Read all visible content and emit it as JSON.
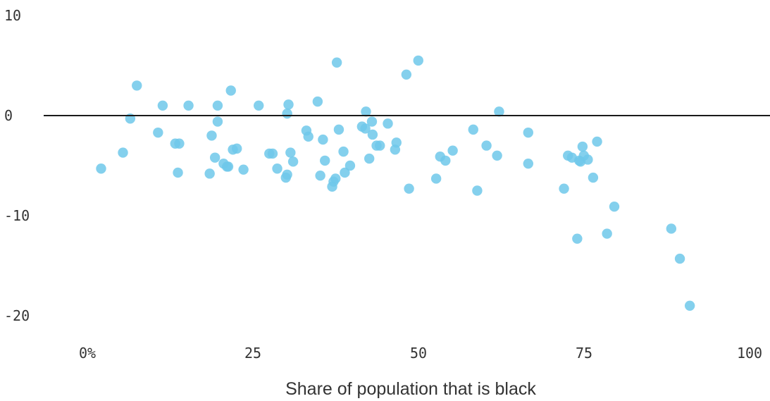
{
  "chart_data": {
    "type": "scatter",
    "title": "",
    "xlabel": "Share of population that is black",
    "ylabel": "",
    "xlim": [
      -2,
      105
    ],
    "ylim": [
      -22,
      10
    ],
    "x_ticks": [
      0,
      25,
      50,
      75,
      100
    ],
    "x_tick_labels": [
      "0%",
      "25",
      "50",
      "75",
      "100"
    ],
    "y_ticks": [
      10,
      0,
      -10,
      -20
    ],
    "y_tick_labels": [
      "10",
      "0",
      "-10",
      "-20"
    ],
    "reference_line_y": 0,
    "grid": false,
    "legend": "none",
    "point_color": "#6ec8ea",
    "series": [
      {
        "name": "",
        "points": [
          [
            2.5,
            -5.3
          ],
          [
            5.8,
            -3.7
          ],
          [
            6.9,
            -0.3
          ],
          [
            7.9,
            3.0
          ],
          [
            11.1,
            -1.7
          ],
          [
            11.8,
            1.0
          ],
          [
            13.7,
            -2.8
          ],
          [
            14.1,
            -5.7
          ],
          [
            14.3,
            -2.8
          ],
          [
            15.7,
            1.0
          ],
          [
            18.9,
            -5.8
          ],
          [
            19.2,
            -2.0
          ],
          [
            19.7,
            -4.2
          ],
          [
            20.1,
            1.0
          ],
          [
            20.1,
            -0.6
          ],
          [
            21.0,
            -4.8
          ],
          [
            21.5,
            -5.1
          ],
          [
            21.7,
            -5.1
          ],
          [
            22.1,
            2.5
          ],
          [
            22.4,
            -3.4
          ],
          [
            23.0,
            -3.3
          ],
          [
            24.0,
            -5.4
          ],
          [
            26.3,
            1.0
          ],
          [
            27.9,
            -3.8
          ],
          [
            28.4,
            -3.8
          ],
          [
            29.1,
            -5.3
          ],
          [
            30.4,
            -6.2
          ],
          [
            30.6,
            -5.9
          ],
          [
            30.6,
            0.2
          ],
          [
            30.8,
            1.1
          ],
          [
            31.1,
            -3.7
          ],
          [
            31.5,
            -4.6
          ],
          [
            33.5,
            -1.5
          ],
          [
            33.8,
            -2.1
          ],
          [
            35.2,
            1.4
          ],
          [
            35.6,
            -6.0
          ],
          [
            36.0,
            -2.4
          ],
          [
            36.3,
            -4.5
          ],
          [
            37.4,
            -7.1
          ],
          [
            37.6,
            -6.6
          ],
          [
            37.9,
            -6.3
          ],
          [
            38.1,
            5.3
          ],
          [
            38.4,
            -1.4
          ],
          [
            39.1,
            -3.6
          ],
          [
            39.3,
            -5.7
          ],
          [
            40.1,
            -5.0
          ],
          [
            41.9,
            -1.1
          ],
          [
            42.4,
            -1.3
          ],
          [
            42.5,
            0.4
          ],
          [
            43.0,
            -4.3
          ],
          [
            43.4,
            -0.6
          ],
          [
            43.5,
            -1.9
          ],
          [
            44.1,
            -3.0
          ],
          [
            44.6,
            -3.0
          ],
          [
            45.8,
            -0.8
          ],
          [
            46.9,
            -3.4
          ],
          [
            47.1,
            -2.7
          ],
          [
            48.6,
            4.1
          ],
          [
            49.0,
            -7.3
          ],
          [
            50.4,
            5.5
          ],
          [
            53.1,
            -6.3
          ],
          [
            53.7,
            -4.1
          ],
          [
            54.5,
            -4.5
          ],
          [
            55.6,
            -3.5
          ],
          [
            58.7,
            -1.4
          ],
          [
            59.3,
            -7.5
          ],
          [
            60.7,
            -3.0
          ],
          [
            62.3,
            -4.0
          ],
          [
            62.6,
            0.4
          ],
          [
            67.0,
            -1.7
          ],
          [
            67.0,
            -4.8
          ],
          [
            72.4,
            -7.3
          ],
          [
            73.0,
            -4.0
          ],
          [
            73.6,
            -4.2
          ],
          [
            74.4,
            -12.3
          ],
          [
            74.7,
            -4.5
          ],
          [
            74.9,
            -4.6
          ],
          [
            75.2,
            -3.1
          ],
          [
            75.4,
            -4.0
          ],
          [
            76.0,
            -4.4
          ],
          [
            76.8,
            -6.2
          ],
          [
            77.4,
            -2.6
          ],
          [
            78.9,
            -11.8
          ],
          [
            80.0,
            -9.1
          ],
          [
            88.6,
            -11.3
          ],
          [
            89.9,
            -14.3
          ],
          [
            91.4,
            -19.0
          ]
        ]
      }
    ]
  }
}
